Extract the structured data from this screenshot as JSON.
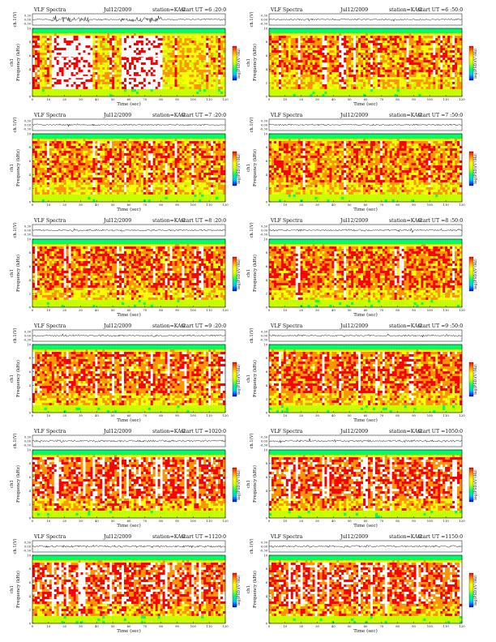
{
  "chart_data": {
    "type": "heatmap",
    "common": {
      "header_left": "VLF Spectra",
      "station": "station=KAG",
      "wave_ylabel": "ch.1(V)",
      "wave_yticks": [
        "0.30",
        "0.00",
        "-0.30"
      ],
      "spec_ylabel_top": "ch1",
      "spec_ylabel": "Frequency  (kHz)",
      "spec_yticks": [
        "0",
        "2",
        "4",
        "6",
        "8",
        "10"
      ],
      "xlabel": "Time  (sec)",
      "xticks": [
        "0",
        "10",
        "20",
        "30",
        "40",
        "50",
        "60",
        "70",
        "80",
        "90",
        "100",
        "110",
        "120"
      ],
      "xlim": [
        0,
        120
      ],
      "ylim_khz": [
        0,
        10
      ],
      "colorbar_label": "log(PSD)(V²/Hz)",
      "colors": [
        "#0000ff",
        "#00c8ff",
        "#00ff64",
        "#c8ff00",
        "#ffff00",
        "#ff9600",
        "#ff0000",
        "#ffffff"
      ]
    },
    "panels": [
      {
        "date": "Jul12/2009",
        "start": "start  UT  =6 :20:0",
        "burst_segments": [
          [
            12,
            37
          ],
          [
            55,
            80
          ]
        ],
        "activity": 0.35
      },
      {
        "date": "Jul12/2009",
        "start": "start  UT  =6 :50:0",
        "burst_segments": [],
        "activity": 0.55
      },
      {
        "date": "Jul12/2009",
        "start": "start  UT  =7 :20:0",
        "burst_segments": [],
        "activity": 0.55
      },
      {
        "date": "Jul12/2009",
        "start": "start  UT  =7 :50:0",
        "burst_segments": [],
        "activity": 0.6
      },
      {
        "date": "Jul12/2009",
        "start": "start  UT  =8 :20:0",
        "burst_segments": [],
        "activity": 0.65
      },
      {
        "date": "Jul12/2009",
        "start": "start  UT  =8 :50:0",
        "burst_segments": [],
        "activity": 0.65
      },
      {
        "date": "Jul12/2009",
        "start": "start  UT  =9 :20:0",
        "burst_segments": [],
        "activity": 0.7
      },
      {
        "date": "Jul12/2009",
        "start": "start  UT  =9 :50:0",
        "burst_segments": [],
        "activity": 0.7
      },
      {
        "date": "Jul12/2009",
        "start": "start  UT  =1020:0",
        "burst_segments": [],
        "activity": 0.8
      },
      {
        "date": "Jul12/2009",
        "start": "start  UT  =1050:0",
        "burst_segments": [],
        "activity": 0.8
      },
      {
        "date": "Jul12/2009",
        "start": "start  UT  =1120:0",
        "burst_segments": [],
        "activity": 0.85
      },
      {
        "date": "Jul12/2009",
        "start": "start  UT  =1150:0",
        "burst_segments": [],
        "activity": 0.85
      }
    ]
  }
}
